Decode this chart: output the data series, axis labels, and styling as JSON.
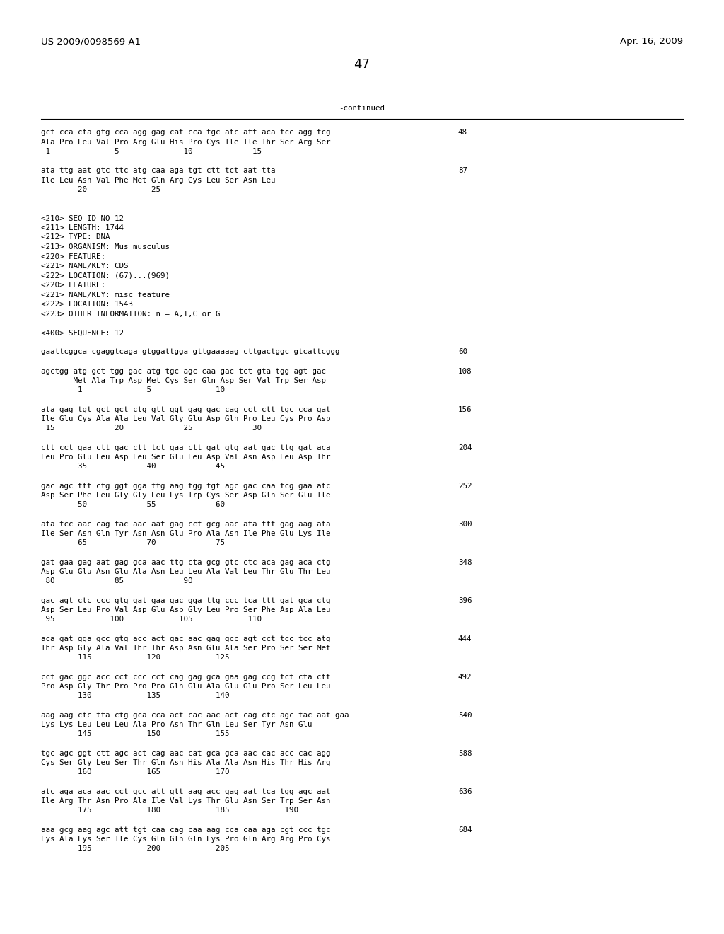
{
  "page_number": "47",
  "left_header": "US 2009/0098569 A1",
  "right_header": "Apr. 16, 2009",
  "continued_label": "-continued",
  "background_color": "#ffffff",
  "text_color": "#000000",
  "font_size_header": 9.5,
  "font_size_page_num": 13,
  "font_size_body": 7.8,
  "content_lines": [
    {
      "text": "gct cca cta gtg cca agg gag cat cca tgc atc att aca tcc agg tcg",
      "num": "48"
    },
    {
      "text": "Ala Pro Leu Val Pro Arg Glu His Pro Cys Ile Ile Thr Ser Arg Ser",
      "num": ""
    },
    {
      "text": " 1              5              10             15",
      "num": ""
    },
    {
      "text": "",
      "num": ""
    },
    {
      "text": "ata ttg aat gtc ttc atg caa aga tgt ctt tct aat tta",
      "num": "87"
    },
    {
      "text": "Ile Leu Asn Val Phe Met Gln Arg Cys Leu Ser Asn Leu",
      "num": ""
    },
    {
      "text": "        20              25",
      "num": ""
    },
    {
      "text": "",
      "num": ""
    },
    {
      "text": "",
      "num": ""
    },
    {
      "text": "<210> SEQ ID NO 12",
      "num": ""
    },
    {
      "text": "<211> LENGTH: 1744",
      "num": ""
    },
    {
      "text": "<212> TYPE: DNA",
      "num": ""
    },
    {
      "text": "<213> ORGANISM: Mus musculus",
      "num": ""
    },
    {
      "text": "<220> FEATURE:",
      "num": ""
    },
    {
      "text": "<221> NAME/KEY: CDS",
      "num": ""
    },
    {
      "text": "<222> LOCATION: (67)...(969)",
      "num": ""
    },
    {
      "text": "<220> FEATURE:",
      "num": ""
    },
    {
      "text": "<221> NAME/KEY: misc_feature",
      "num": ""
    },
    {
      "text": "<222> LOCATION: 1543",
      "num": ""
    },
    {
      "text": "<223> OTHER INFORMATION: n = A,T,C or G",
      "num": ""
    },
    {
      "text": "",
      "num": ""
    },
    {
      "text": "<400> SEQUENCE: 12",
      "num": ""
    },
    {
      "text": "",
      "num": ""
    },
    {
      "text": "gaattcggca cgaggtcaga gtggattgga gttgaaaaag cttgactggc gtcattcggg",
      "num": "60"
    },
    {
      "text": "",
      "num": ""
    },
    {
      "text": "agctgg atg gct tgg gac atg tgc agc caa gac tct gta tgg agt gac",
      "num": "108"
    },
    {
      "text": "       Met Ala Trp Asp Met Cys Ser Gln Asp Ser Val Trp Ser Asp",
      "num": ""
    },
    {
      "text": "        1              5              10",
      "num": ""
    },
    {
      "text": "",
      "num": ""
    },
    {
      "text": "ata gag tgt gct gct ctg gtt ggt gag gac cag cct ctt tgc cca gat",
      "num": "156"
    },
    {
      "text": "Ile Glu Cys Ala Ala Leu Val Gly Glu Asp Gln Pro Leu Cys Pro Asp",
      "num": ""
    },
    {
      "text": " 15             20             25             30",
      "num": ""
    },
    {
      "text": "",
      "num": ""
    },
    {
      "text": "ctt cct gaa ctt gac ctt tct gaa ctt gat gtg aat gac ttg gat aca",
      "num": "204"
    },
    {
      "text": "Leu Pro Glu Leu Asp Leu Ser Glu Leu Asp Val Asn Asp Leu Asp Thr",
      "num": ""
    },
    {
      "text": "        35             40             45",
      "num": ""
    },
    {
      "text": "",
      "num": ""
    },
    {
      "text": "gac agc ttt ctg ggt gga ttg aag tgg tgt agc gac caa tcg gaa atc",
      "num": "252"
    },
    {
      "text": "Asp Ser Phe Leu Gly Gly Leu Lys Trp Cys Ser Asp Gln Ser Glu Ile",
      "num": ""
    },
    {
      "text": "        50             55             60",
      "num": ""
    },
    {
      "text": "",
      "num": ""
    },
    {
      "text": "ata tcc aac cag tac aac aat gag cct gcg aac ata ttt gag aag ata",
      "num": "300"
    },
    {
      "text": "Ile Ser Asn Gln Tyr Asn Asn Glu Pro Ala Asn Ile Phe Glu Lys Ile",
      "num": ""
    },
    {
      "text": "        65             70             75",
      "num": ""
    },
    {
      "text": "",
      "num": ""
    },
    {
      "text": "gat gaa gag aat gag gca aac ttg cta gcg gtc ctc aca gag aca ctg",
      "num": "348"
    },
    {
      "text": "Asp Glu Glu Asn Glu Ala Asn Leu Leu Ala Val Leu Thr Glu Thr Leu",
      "num": ""
    },
    {
      "text": " 80             85             90",
      "num": ""
    },
    {
      "text": "",
      "num": ""
    },
    {
      "text": "gac agt ctc ccc gtg gat gaa gac gga ttg ccc tca ttt gat gca ctg",
      "num": "396"
    },
    {
      "text": "Asp Ser Leu Pro Val Asp Glu Asp Gly Leu Pro Ser Phe Asp Ala Leu",
      "num": ""
    },
    {
      "text": " 95            100            105            110",
      "num": ""
    },
    {
      "text": "",
      "num": ""
    },
    {
      "text": "aca gat gga gcc gtg acc act gac aac gag gcc agt cct tcc tcc atg",
      "num": "444"
    },
    {
      "text": "Thr Asp Gly Ala Val Thr Thr Asp Asn Glu Ala Ser Pro Ser Ser Met",
      "num": ""
    },
    {
      "text": "        115            120            125",
      "num": ""
    },
    {
      "text": "",
      "num": ""
    },
    {
      "text": "cct gac ggc acc cct ccc cct cag gag gca gaa gag ccg tct cta ctt",
      "num": "492"
    },
    {
      "text": "Pro Asp Gly Thr Pro Pro Pro Gln Glu Ala Glu Glu Pro Ser Leu Leu",
      "num": ""
    },
    {
      "text": "        130            135            140",
      "num": ""
    },
    {
      "text": "",
      "num": ""
    },
    {
      "text": "aag aag ctc tta ctg gca cca act cac aac act cag ctc agc tac aat gaa",
      "num": "540"
    },
    {
      "text": "Lys Lys Leu Leu Leu Ala Pro Asn Thr Gln Leu Ser Tyr Asn Glu",
      "num": ""
    },
    {
      "text": "        145            150            155",
      "num": ""
    },
    {
      "text": "",
      "num": ""
    },
    {
      "text": "tgc agc ggt ctt agc act cag aac cat gca gca aac cac acc cac agg",
      "num": "588"
    },
    {
      "text": "Cys Ser Gly Leu Ser Thr Gln Asn His Ala Ala Asn His Thr His Arg",
      "num": ""
    },
    {
      "text": "        160            165            170",
      "num": ""
    },
    {
      "text": "",
      "num": ""
    },
    {
      "text": "atc aga aca aac cct gcc att gtt aag acc gag aat tca tgg agc aat",
      "num": "636"
    },
    {
      "text": "Ile Arg Thr Asn Pro Ala Ile Val Lys Thr Glu Asn Ser Trp Ser Asn",
      "num": ""
    },
    {
      "text": "        175            180            185            190",
      "num": ""
    },
    {
      "text": "",
      "num": ""
    },
    {
      "text": "aaa gcg aag agc att tgt caa cag caa aag cca caa aga cgt ccc tgc",
      "num": "684"
    },
    {
      "text": "Lys Ala Lys Ser Ile Cys Gln Gln Gln Lys Pro Gln Arg Arg Pro Cys",
      "num": ""
    },
    {
      "text": "        195            200            205",
      "num": ""
    }
  ]
}
